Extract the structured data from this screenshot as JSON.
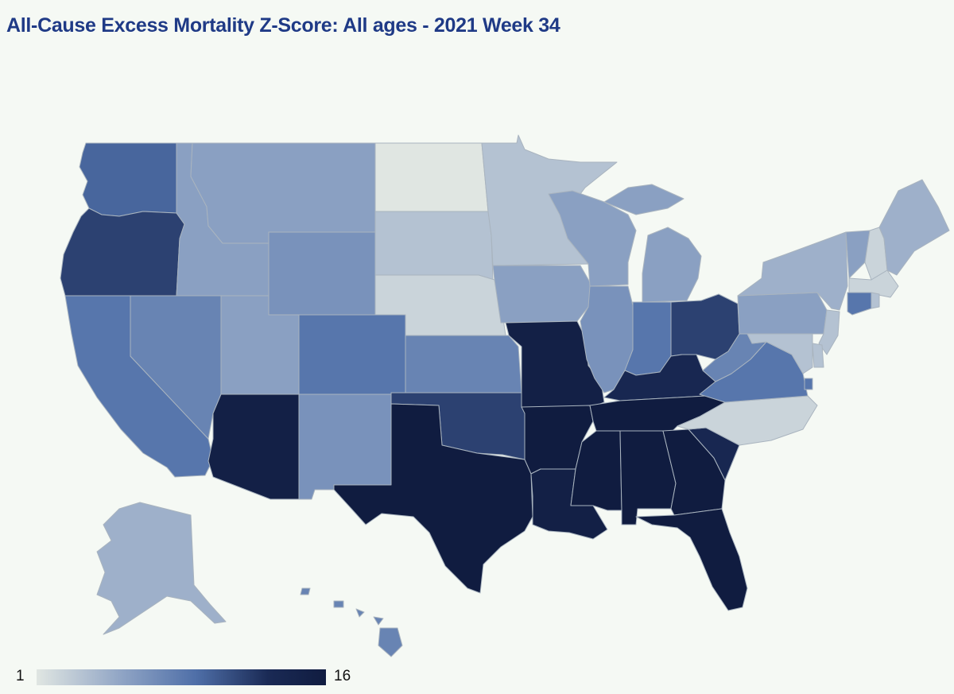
{
  "title": "All-Cause Excess Mortality Z-Score: All ages - 2021 Week 34",
  "legend": {
    "min": "1",
    "max": "16",
    "colors": [
      "#e0e6e2",
      "#8ea3c4",
      "#4f6fa8",
      "#1a2a55",
      "#101c40"
    ]
  },
  "palette": {
    "background": "#f5f9f4",
    "stroke": "#a9b4bf",
    "title": "#1f3a86"
  },
  "states": [
    {
      "id": "WA",
      "z": 9
    },
    {
      "id": "OR",
      "z": 11
    },
    {
      "id": "CA",
      "z": 8
    },
    {
      "id": "NV",
      "z": 7
    },
    {
      "id": "ID",
      "z": 5
    },
    {
      "id": "MT",
      "z": 5
    },
    {
      "id": "WY",
      "z": 6
    },
    {
      "id": "UT",
      "z": 5
    },
    {
      "id": "AZ",
      "z": 15
    },
    {
      "id": "CO",
      "z": 8
    },
    {
      "id": "NM",
      "z": 6
    },
    {
      "id": "ND",
      "z": 1
    },
    {
      "id": "SD",
      "z": 3
    },
    {
      "id": "NE",
      "z": 2
    },
    {
      "id": "KS",
      "z": 7
    },
    {
      "id": "OK",
      "z": 11
    },
    {
      "id": "TX",
      "z": 16
    },
    {
      "id": "MN",
      "z": 3
    },
    {
      "id": "IA",
      "z": 5
    },
    {
      "id": "MO",
      "z": 15
    },
    {
      "id": "AR",
      "z": 16
    },
    {
      "id": "LA",
      "z": 15
    },
    {
      "id": "WI",
      "z": 5
    },
    {
      "id": "IL",
      "z": 6
    },
    {
      "id": "MI",
      "z": 5
    },
    {
      "id": "IN",
      "z": 8
    },
    {
      "id": "OH",
      "z": 11
    },
    {
      "id": "KY",
      "z": 13
    },
    {
      "id": "TN",
      "z": 16
    },
    {
      "id": "MS",
      "z": 16
    },
    {
      "id": "AL",
      "z": 16
    },
    {
      "id": "GA",
      "z": 16
    },
    {
      "id": "FL",
      "z": 16
    },
    {
      "id": "SC",
      "z": 13
    },
    {
      "id": "NC",
      "z": 2
    },
    {
      "id": "VA",
      "z": 8
    },
    {
      "id": "WV",
      "z": 7
    },
    {
      "id": "PA",
      "z": 5
    },
    {
      "id": "NY",
      "z": 4
    },
    {
      "id": "VT",
      "z": 5
    },
    {
      "id": "NH",
      "z": 2
    },
    {
      "id": "ME",
      "z": 4
    },
    {
      "id": "MA",
      "z": 2
    },
    {
      "id": "CT",
      "z": 8
    },
    {
      "id": "RI",
      "z": 3
    },
    {
      "id": "NJ",
      "z": 3
    },
    {
      "id": "DE",
      "z": 3
    },
    {
      "id": "MD",
      "z": 3
    },
    {
      "id": "DC",
      "z": 8
    },
    {
      "id": "AK",
      "z": 4
    },
    {
      "id": "HI",
      "z": 7
    }
  ]
}
